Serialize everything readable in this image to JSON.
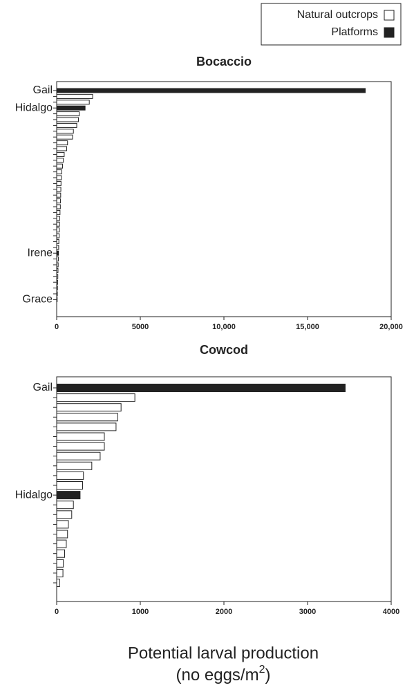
{
  "chart_data": [
    {
      "type": "barh",
      "title": "Bocaccio",
      "categories": [
        "Gail",
        null,
        null,
        "Hidalgo",
        null,
        null,
        null,
        null,
        null,
        null,
        null,
        null,
        null,
        null,
        null,
        null,
        null,
        null,
        null,
        null,
        null,
        null,
        null,
        null,
        null,
        null,
        null,
        null,
        "Irene",
        null,
        null,
        null,
        null,
        null,
        null,
        null,
        "Grace"
      ],
      "series": [
        {
          "name": "Natural outcrops",
          "color": "#ffffff",
          "values": [
            null,
            2150,
            1950,
            null,
            1350,
            1300,
            1200,
            1000,
            950,
            650,
            600,
            450,
            400,
            350,
            300,
            280,
            260,
            250,
            240,
            230,
            220,
            200,
            180,
            170,
            160,
            150,
            130,
            120,
            null,
            100,
            90,
            80,
            70,
            60,
            50,
            40,
            null
          ]
        },
        {
          "name": "Platforms",
          "color": "#222222",
          "values": [
            18450,
            null,
            null,
            1700,
            null,
            null,
            null,
            null,
            null,
            null,
            null,
            null,
            null,
            null,
            null,
            null,
            null,
            null,
            null,
            null,
            null,
            null,
            null,
            null,
            null,
            null,
            null,
            null,
            110,
            null,
            null,
            null,
            null,
            null,
            null,
            null,
            30
          ]
        }
      ],
      "xlim": [
        0,
        20000
      ],
      "xticks": [
        0,
        5000,
        {
          "value": 10000,
          "label": "10,000"
        },
        {
          "value": 15000,
          "label": "15,000"
        },
        {
          "value": 20000,
          "label": "20,000"
        }
      ]
    },
    {
      "type": "barh",
      "title": "Cowcod",
      "categories": [
        "Gail",
        null,
        null,
        null,
        null,
        null,
        null,
        null,
        null,
        null,
        null,
        "Hidalgo",
        null,
        null,
        null,
        null,
        null,
        null,
        null,
        null,
        null
      ],
      "series": [
        {
          "color": "#ffffff",
          "values": [
            null,
            935,
            770,
            730,
            710,
            570,
            570,
            520,
            420,
            320,
            310,
            null,
            200,
            180,
            140,
            130,
            115,
            95,
            80,
            75,
            35
          ]
        },
        {
          "color": "#222222",
          "values": [
            3450,
            null,
            null,
            null,
            null,
            null,
            null,
            null,
            null,
            null,
            null,
            280,
            null,
            null,
            null,
            null,
            null,
            null,
            null,
            null,
            null
          ]
        }
      ],
      "xlim": [
        0,
        4000
      ],
      "xticks": [
        0,
        1000,
        2000,
        3000,
        4000
      ],
      "xlabel": [
        "Potential larval production",
        "(no eggs/m",
        "2",
        ")"
      ]
    }
  ]
}
